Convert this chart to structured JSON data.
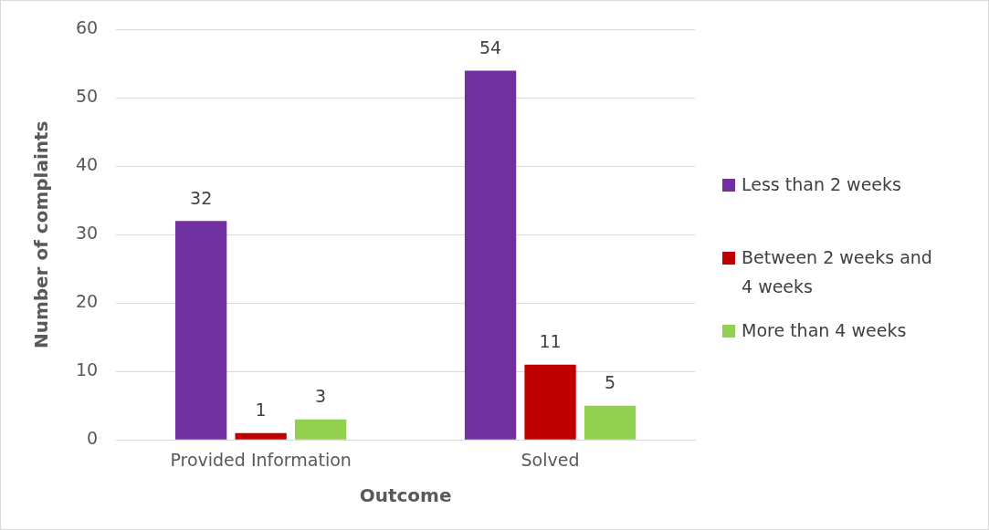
{
  "chart_data": {
    "type": "bar",
    "xlabel": "Outcome",
    "ylabel": "Number of complaints",
    "categories": [
      "Provided Information",
      "Solved"
    ],
    "series": [
      {
        "name": "Less than 2 weeks",
        "color": "#7030a0",
        "values": [
          32,
          54
        ]
      },
      {
        "name": "Between 2 weeks and 4 weeks",
        "color": "#c00000",
        "values": [
          1,
          11
        ]
      },
      {
        "name": "More than 4 weeks",
        "color": "#92d050",
        "values": [
          3,
          5
        ]
      }
    ],
    "ylim": [
      0,
      60
    ],
    "yticks": [
      0,
      10,
      20,
      30,
      40,
      50,
      60
    ],
    "grid": "y",
    "legend": "right",
    "data_labels": true
  }
}
